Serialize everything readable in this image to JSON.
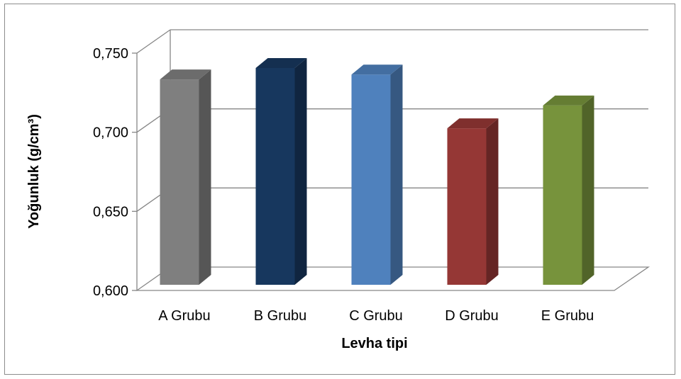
{
  "chart_data": {
    "type": "bar",
    "style": "3d-column",
    "title": "",
    "xlabel": "Levha tipi",
    "ylabel": "Yoğunluk (g/cm³)",
    "categories": [
      "A Grubu",
      "B Grubu",
      "C Grubu",
      "D Grubu",
      "E Grubu"
    ],
    "values": [
      0.726,
      0.733,
      0.729,
      0.696,
      0.71
    ],
    "colors": [
      "#7f7f7f",
      "#17375e",
      "#4f81bd",
      "#953735",
      "#77933c"
    ],
    "ylim": [
      0.6,
      0.75
    ],
    "yticks": [
      "0,600",
      "0,650",
      "0,700",
      "0,750"
    ],
    "grid": true,
    "legend": "none"
  }
}
